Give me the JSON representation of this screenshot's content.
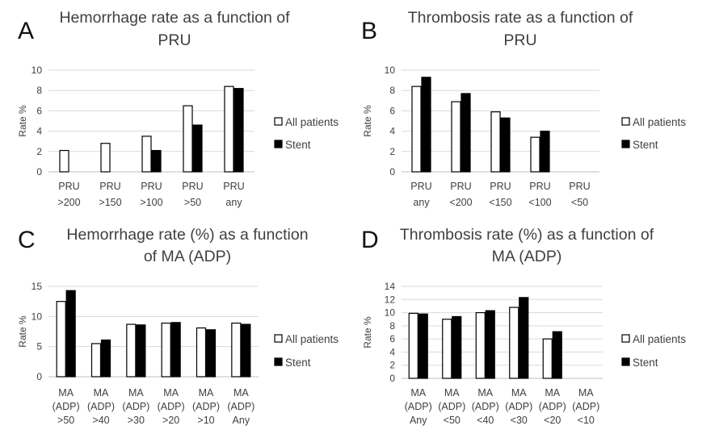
{
  "chart_data": [
    {
      "panel": "A",
      "type": "bar",
      "title": [
        "Hemorrhage rate as a function of",
        "PRU"
      ],
      "ylabel": "Rate %",
      "xlabel": "",
      "ylim": [
        0,
        10
      ],
      "yticks": [
        0,
        2,
        4,
        6,
        8,
        10
      ],
      "grid": true,
      "legend_position": "right",
      "categories": [
        [
          "PRU",
          ">200"
        ],
        [
          "PRU",
          ">150"
        ],
        [
          "PRU",
          ">100"
        ],
        [
          "PRU",
          ">50"
        ],
        [
          "PRU",
          "any"
        ]
      ],
      "series": [
        {
          "name": "All patients",
          "fill": "#ffffff",
          "values": [
            2.1,
            2.8,
            3.5,
            6.5,
            8.4
          ]
        },
        {
          "name": "Stent",
          "fill": "#000000",
          "values": [
            null,
            null,
            2.1,
            4.6,
            8.2
          ]
        }
      ]
    },
    {
      "panel": "B",
      "type": "bar",
      "title": [
        "Thrombosis rate as a function of",
        "PRU"
      ],
      "ylabel": "Rate %",
      "xlabel": "",
      "ylim": [
        0,
        10
      ],
      "yticks": [
        0,
        2,
        4,
        6,
        8,
        10
      ],
      "grid": true,
      "legend_position": "right",
      "categories": [
        [
          "PRU",
          "any"
        ],
        [
          "PRU",
          "<200"
        ],
        [
          "PRU",
          "<150"
        ],
        [
          "PRU",
          "<100"
        ],
        [
          "PRU",
          "<50"
        ]
      ],
      "series": [
        {
          "name": "All patients",
          "fill": "#ffffff",
          "values": [
            8.4,
            6.9,
            5.9,
            3.4,
            null
          ]
        },
        {
          "name": "Stent",
          "fill": "#000000",
          "values": [
            9.3,
            7.7,
            5.3,
            4.0,
            null
          ]
        }
      ]
    },
    {
      "panel": "C",
      "type": "bar",
      "title": [
        "Hemorrhage rate (%) as a function",
        "of MA (ADP)"
      ],
      "ylabel": "Rate %",
      "xlabel": "",
      "ylim": [
        0,
        15
      ],
      "yticks": [
        0,
        5,
        10,
        15
      ],
      "grid": true,
      "legend_position": "right",
      "categories": [
        [
          "MA",
          "(ADP)",
          ">50"
        ],
        [
          "MA",
          "(ADP)",
          ">40"
        ],
        [
          "MA",
          "(ADP)",
          ">30"
        ],
        [
          "MA",
          "(ADP)",
          ">20"
        ],
        [
          "MA",
          "(ADP)",
          ">10"
        ],
        [
          "MA",
          "(ADP)",
          "Any"
        ]
      ],
      "series": [
        {
          "name": "All patients",
          "fill": "#ffffff",
          "values": [
            12.5,
            5.5,
            8.7,
            8.9,
            8.1,
            8.9
          ]
        },
        {
          "name": "Stent",
          "fill": "#000000",
          "values": [
            14.3,
            6.1,
            8.6,
            9.0,
            7.8,
            8.7
          ]
        }
      ]
    },
    {
      "panel": "D",
      "type": "bar",
      "title": [
        "Thrombosis rate (%) as a function of",
        "MA (ADP)"
      ],
      "ylabel": "Rate %",
      "xlabel": "",
      "ylim": [
        0,
        14
      ],
      "yticks": [
        0,
        2,
        4,
        6,
        8,
        10,
        12,
        14
      ],
      "grid": true,
      "legend_position": "right",
      "categories": [
        [
          "MA",
          "(ADP)",
          "Any"
        ],
        [
          "MA",
          "(ADP)",
          "<50"
        ],
        [
          "MA",
          "(ADP)",
          "<40"
        ],
        [
          "MA",
          "(ADP)",
          "<30"
        ],
        [
          "MA",
          "(ADP)",
          "<20"
        ],
        [
          "MA",
          "(ADP)",
          "<10"
        ]
      ],
      "series": [
        {
          "name": "All patients",
          "fill": "#ffffff",
          "values": [
            9.9,
            9.0,
            10.0,
            10.8,
            6.0,
            null
          ]
        },
        {
          "name": "Stent",
          "fill": "#000000",
          "values": [
            9.8,
            9.4,
            10.3,
            12.3,
            7.1,
            null
          ]
        }
      ]
    }
  ]
}
